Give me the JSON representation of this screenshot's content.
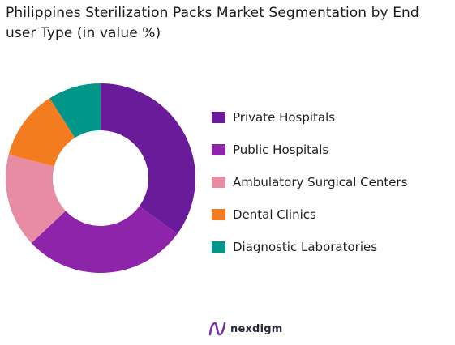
{
  "chart_data": {
    "type": "pie",
    "variant": "donut",
    "title": "Philippines Sterilization Packs Market Segmentation by End user Type (in value %)",
    "categories": [
      "Private Hospitals",
      "Public Hospitals",
      "Ambulatory Surgical Centers",
      "Dental Clinics",
      "Diagnostic Laboratories"
    ],
    "values": [
      35,
      28,
      16,
      12,
      9
    ],
    "colors": [
      "#6a1b9a",
      "#8e24aa",
      "#e88ca4",
      "#f47c20",
      "#00968a"
    ],
    "legend_position": "right"
  },
  "logo": {
    "text": "nexdigm",
    "icon": "nexdigm-logo-icon",
    "color": "#7b2fa6"
  }
}
